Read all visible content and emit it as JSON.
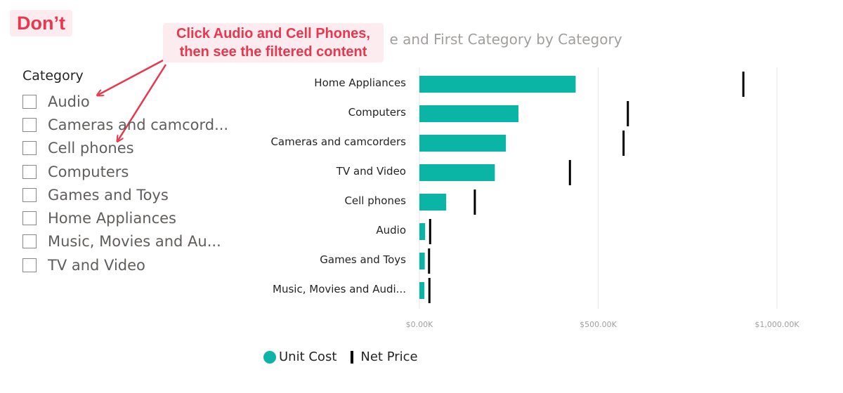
{
  "badge": "Don’t",
  "callout": {
    "line1": "Click Audio and Cell Phones,",
    "line2": "then see the filtered content"
  },
  "slicer": {
    "title": "Category",
    "items": [
      "Audio",
      "Cameras and camcord...",
      "Cell phones",
      "Computers",
      "Games and Toys",
      "Home Appliances",
      "Music, Movies and Au...",
      "TV and Video"
    ]
  },
  "chart_title_visible": "e and First Category by Category",
  "colors": {
    "unit_cost": "#0bb5a6",
    "net_price": "#000000",
    "grid": "#e5e5e5",
    "annotation": "#e8374f"
  },
  "legend": {
    "unit_cost": "Unit Cost",
    "net_price": "Net Price"
  },
  "chart_data": {
    "type": "bar",
    "orientation": "horizontal",
    "title": "e and First Category by Category",
    "categories": [
      "Home Appliances",
      "Computers",
      "Cameras and camcorders",
      "TV and Video",
      "Cell phones",
      "Audio",
      "Games and Toys",
      "Music, Movies and Audi..."
    ],
    "series": [
      {
        "name": "Unit Cost",
        "kind": "bar",
        "values": [
          437,
          277,
          242,
          211,
          75,
          16,
          15,
          14
        ]
      },
      {
        "name": "Net Price",
        "kind": "marker",
        "values": [
          906,
          583,
          571,
          421,
          155,
          30,
          27,
          28
        ]
      }
    ],
    "xlim": [
      0,
      1000
    ],
    "xticks": [
      0,
      500,
      1000
    ],
    "xtick_labels": [
      "$0.00K",
      "$500.00K",
      "$1,000.00K"
    ],
    "grid": true,
    "legend": "bottom-left"
  }
}
